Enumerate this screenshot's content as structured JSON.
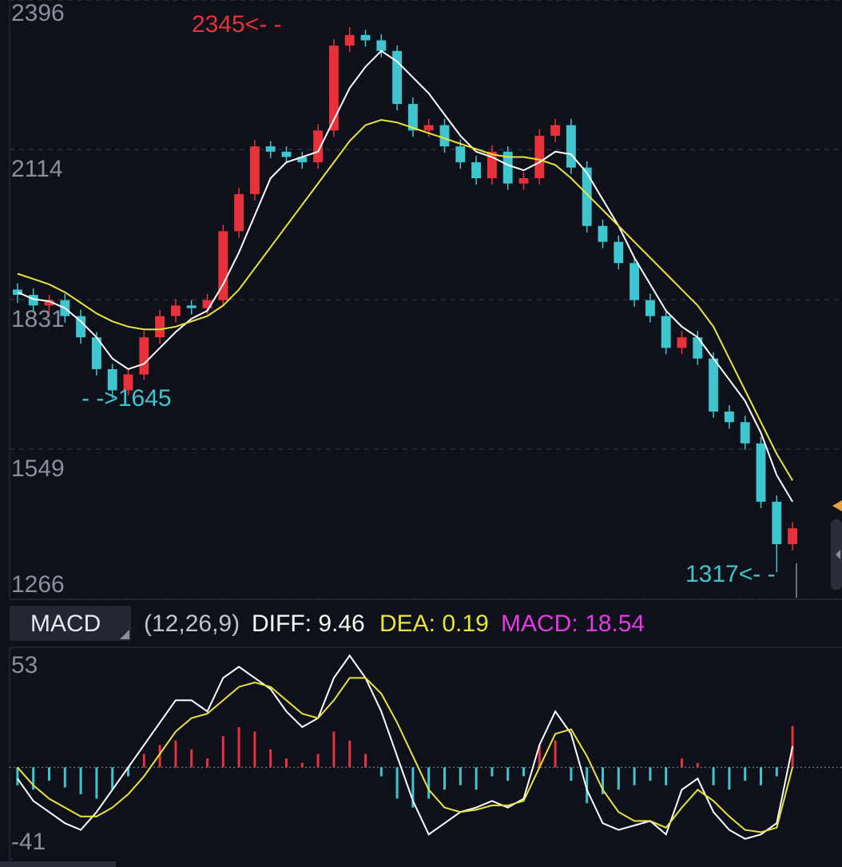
{
  "chart_data": [
    {
      "type": "candlestick",
      "up_color": "#e8313a",
      "down_color": "#3ec6d0",
      "open": [
        1850,
        1840,
        1820,
        1830,
        1800,
        1760,
        1700,
        1660,
        1690,
        1760,
        1800,
        1820,
        1815,
        1830,
        1960,
        2030,
        2120,
        2110,
        2100,
        2090,
        2150,
        2310,
        2330,
        2320,
        2300,
        2200,
        2150,
        2160,
        2120,
        2090,
        2060,
        2110,
        2050,
        2060,
        2140,
        2160,
        2080,
        1970,
        1940,
        1900,
        1830,
        1800,
        1740,
        1760,
        1720,
        1620,
        1600,
        1560,
        1450,
        1370
      ],
      "high": [
        1862,
        1852,
        1840,
        1842,
        1812,
        1770,
        1710,
        1700,
        1772,
        1812,
        1832,
        1830,
        1842,
        1972,
        2042,
        2132,
        2130,
        2120,
        2110,
        2162,
        2322,
        2345,
        2340,
        2332,
        2310,
        2212,
        2172,
        2172,
        2132,
        2102,
        2122,
        2120,
        2072,
        2152,
        2172,
        2172,
        2092,
        1982,
        1952,
        1912,
        1842,
        1812,
        1772,
        1772,
        1732,
        1632,
        1612,
        1572,
        1462,
        1412
      ],
      "low": [
        1825,
        1808,
        1805,
        1788,
        1748,
        1688,
        1645,
        1650,
        1680,
        1748,
        1788,
        1803,
        1803,
        1818,
        1948,
        2018,
        2098,
        2088,
        2078,
        2078,
        2138,
        2298,
        2308,
        2288,
        2188,
        2138,
        2138,
        2108,
        2078,
        2048,
        2048,
        2038,
        2038,
        2048,
        2128,
        2068,
        1958,
        1928,
        1888,
        1818,
        1788,
        1728,
        1728,
        1708,
        1608,
        1588,
        1548,
        1438,
        1317,
        1358
      ],
      "close": [
        1840,
        1820,
        1830,
        1800,
        1760,
        1700,
        1660,
        1690,
        1760,
        1800,
        1820,
        1815,
        1830,
        1960,
        2030,
        2120,
        2110,
        2100,
        2090,
        2150,
        2310,
        2330,
        2320,
        2300,
        2200,
        2150,
        2160,
        2120,
        2090,
        2060,
        2110,
        2050,
        2060,
        2140,
        2160,
        2080,
        1970,
        1940,
        1900,
        1830,
        1800,
        1740,
        1760,
        1720,
        1620,
        1600,
        1560,
        1450,
        1370,
        1400
      ],
      "ma": [
        {
          "color": "#ffffff",
          "values": [
            1845,
            1832,
            1828,
            1815,
            1790,
            1760,
            1720,
            1700,
            1710,
            1740,
            1770,
            1795,
            1810,
            1860,
            1920,
            1990,
            2060,
            2090,
            2100,
            2110,
            2170,
            2230,
            2270,
            2300,
            2280,
            2250,
            2220,
            2180,
            2140,
            2110,
            2100,
            2085,
            2075,
            2090,
            2110,
            2105,
            2070,
            2020,
            1970,
            1910,
            1860,
            1810,
            1780,
            1760,
            1720,
            1680,
            1640,
            1580,
            1500,
            1450
          ]
        },
        {
          "color": "#e8e43a",
          "values": [
            1880,
            1870,
            1860,
            1845,
            1825,
            1805,
            1790,
            1780,
            1775,
            1775,
            1780,
            1790,
            1800,
            1820,
            1850,
            1890,
            1930,
            1970,
            2010,
            2050,
            2090,
            2130,
            2160,
            2170,
            2165,
            2155,
            2145,
            2135,
            2125,
            2115,
            2105,
            2100,
            2100,
            2095,
            2085,
            2060,
            2030,
            2000,
            1970,
            1940,
            1910,
            1880,
            1850,
            1820,
            1780,
            1720,
            1660,
            1600,
            1540,
            1490
          ]
        }
      ],
      "ylim": [
        1266,
        2396
      ],
      "yticks": [
        1266,
        1549,
        1831,
        2114,
        2396
      ],
      "grid": true,
      "annotations": [
        {
          "text": "2345<- -",
          "color": "#e8313a"
        },
        {
          "text": "- ->1645",
          "color": "#3ec6d0"
        },
        {
          "text": "1317<- -",
          "color": "#3ec6d0"
        }
      ]
    },
    {
      "type": "macd",
      "indicator": "MACD",
      "params": "(12,26,9)",
      "diff_label": "DIFF:",
      "diff": 9.46,
      "dea_label": "DEA:",
      "dea": 0.19,
      "macd_label": "MACD:",
      "macd": 18.54,
      "up_color": "#e8313a",
      "down_color": "#3ec6d0",
      "diff_color": "#ffffff",
      "dea_color": "#e8e43a",
      "macd_color": "#e33be3",
      "hist": [
        -8,
        -10,
        -6,
        -9,
        -12,
        -14,
        -10,
        -4,
        6,
        10,
        12,
        8,
        4,
        14,
        18,
        16,
        8,
        4,
        2,
        6,
        16,
        12,
        6,
        -4,
        -14,
        -18,
        -14,
        -10,
        -8,
        -10,
        -4,
        -6,
        -4,
        10,
        12,
        -6,
        -16,
        -12,
        -10,
        -8,
        -6,
        -8,
        4,
        2,
        -8,
        -10,
        -6,
        -8,
        -4,
        18.54
      ],
      "diff_values": [
        -5,
        -15,
        -20,
        -25,
        -28,
        -20,
        -10,
        0,
        10,
        20,
        30,
        30,
        25,
        40,
        45,
        40,
        35,
        25,
        18,
        22,
        40,
        50,
        40,
        25,
        5,
        -15,
        -30,
        -25,
        -20,
        -18,
        -15,
        -18,
        -14,
        10,
        25,
        15,
        -10,
        -25,
        -28,
        -26,
        -24,
        -30,
        -10,
        -5,
        -20,
        -28,
        -32,
        -30,
        -25,
        9.46
      ],
      "dea_values": [
        0,
        -8,
        -14,
        -18,
        -22,
        -22,
        -18,
        -12,
        -4,
        6,
        16,
        22,
        24,
        30,
        36,
        38,
        36,
        30,
        24,
        22,
        30,
        40,
        40,
        33,
        20,
        5,
        -10,
        -18,
        -20,
        -19,
        -17,
        -17,
        -15,
        0,
        15,
        17,
        5,
        -10,
        -20,
        -24,
        -24,
        -27,
        -18,
        -10,
        -15,
        -22,
        -28,
        -29,
        -27,
        0.19
      ],
      "ylim": [
        -41,
        53
      ],
      "yticks": [
        -41,
        53
      ]
    }
  ]
}
